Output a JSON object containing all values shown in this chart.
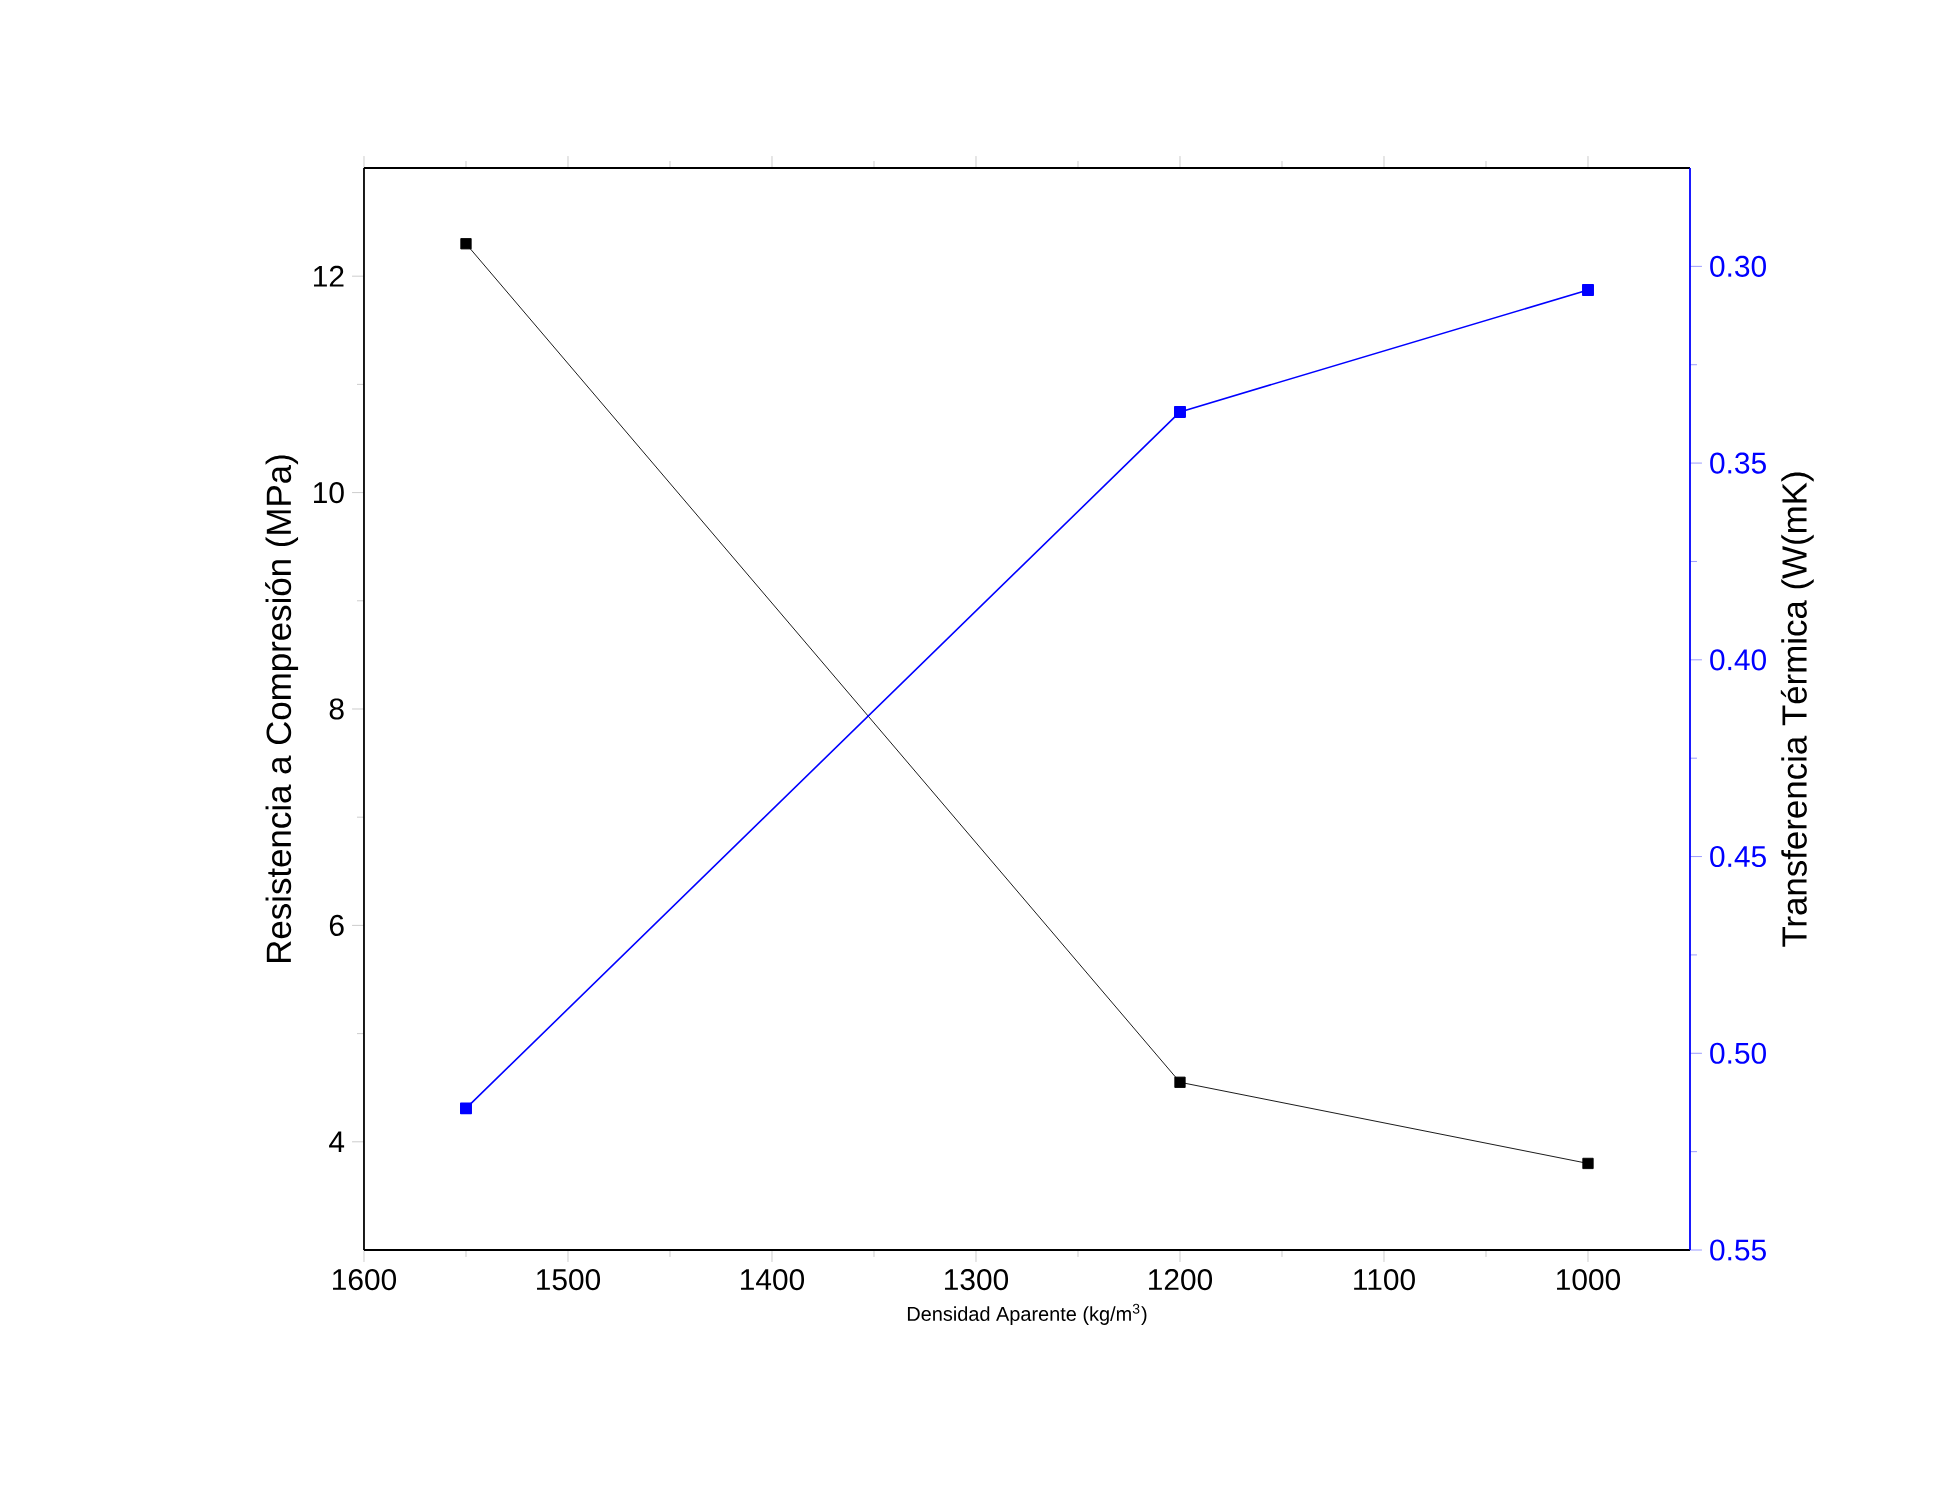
{
  "chart_data": {
    "type": "line",
    "xlabel": "Densidad Aparente (kg/m$^{3}$)",
    "ylabel": "Resistencia a Compresión (MPa)",
    "y2label": "Transferencia Térmica (W(mK)",
    "x": [
      1550,
      1200,
      1000
    ],
    "series": [
      {
        "color": "#000000",
        "values": [
          12.3,
          4.55,
          3.8
        ]
      },
      {
        "color": "#0000ff",
        "values": [
          0.514,
          0.337,
          0.306
        ],
        "axis": "y2"
      }
    ],
    "xlim": [
      1600,
      950
    ],
    "xticks": [
      1600,
      1500,
      1400,
      1300,
      1200,
      1100,
      1000
    ],
    "ylim": [
      3,
      13
    ],
    "yticks": [
      4,
      6,
      8,
      10,
      12
    ],
    "y2lim": [
      0.55,
      0.275
    ],
    "y2ticks": [
      {
        "value": 0.3,
        "label": "0.30"
      },
      0.35,
      {
        "value": 0.4,
        "label": "0.40"
      },
      0.45,
      {
        "value": 0.5,
        "label": "0.50"
      },
      0.55
    ],
    "marker": "square",
    "line_style": "solid"
  }
}
